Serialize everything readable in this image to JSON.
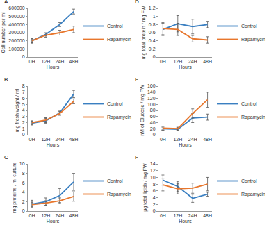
{
  "chart_data": [
    {
      "type": "line",
      "title": "A",
      "x_label": "Hours",
      "y_label": "Cell number per ml",
      "categories": [
        "0H",
        "12H",
        "24H",
        "48H"
      ],
      "series": [
        {
          "name": "Control",
          "color": "#3a7fc1",
          "values": [
            200000,
            280000,
            400000,
            560000
          ],
          "error": [
            25000,
            20000,
            25000,
            30000
          ]
        },
        {
          "name": "Rapamycin",
          "color": "#e8762c",
          "values": [
            200000,
            270000,
            300000,
            340000
          ],
          "error": [
            30000,
            25000,
            30000,
            40000
          ]
        }
      ],
      "ylim": [
        0,
        600000
      ],
      "yticks": [
        0,
        100000,
        200000,
        300000,
        400000,
        500000,
        600000
      ],
      "grid": false,
      "legend": "right"
    },
    {
      "type": "line",
      "title": "D",
      "x_label": "Hours",
      "y_label": "mg total protein / mg FW",
      "categories": [
        "0H",
        "12H",
        "24H",
        "48H"
      ],
      "series": [
        {
          "name": "Control",
          "color": "#3a7fc1",
          "values": [
            0.68,
            0.82,
            0.75,
            0.8
          ],
          "error": [
            0.15,
            0.2,
            0.18,
            0.08
          ]
        },
        {
          "name": "Rapamycin",
          "color": "#e8762c",
          "values": [
            0.7,
            0.68,
            0.45,
            0.42
          ],
          "error": [
            0.15,
            0.15,
            0.08,
            0.08
          ]
        }
      ],
      "ylim": [
        0,
        1.2
      ],
      "yticks": [
        0,
        0.2,
        0.4,
        0.6,
        0.8,
        1,
        1.2
      ],
      "grid": false,
      "legend": "right"
    },
    {
      "type": "line",
      "title": "B",
      "x_label": "Hours",
      "y_label": "mg fresh weight / ml",
      "categories": [
        "0H",
        "12H",
        "24H",
        "48H"
      ],
      "series": [
        {
          "name": "Control",
          "color": "#3a7fc1",
          "values": [
            1.9,
            2.3,
            3.6,
            6.7
          ],
          "error": [
            0.3,
            0.4,
            0.3,
            0.6
          ]
        },
        {
          "name": "Rapamycin",
          "color": "#e8762c",
          "values": [
            2.0,
            2.4,
            3.5,
            5.5
          ],
          "error": [
            0.3,
            0.4,
            0.3,
            0.4
          ]
        }
      ],
      "ylim": [
        0,
        8
      ],
      "yticks": [
        0,
        1,
        2,
        3,
        4,
        5,
        6,
        7,
        8
      ],
      "grid": false,
      "legend": "right"
    },
    {
      "type": "line",
      "title": "E",
      "x_label": "Hours",
      "y_label": "nM of Glucose / mg FW",
      "categories": [
        "0H",
        "12H",
        "24H",
        "48H"
      ],
      "series": [
        {
          "name": "Control",
          "color": "#3a7fc1",
          "values": [
            20,
            18,
            55,
            58
          ],
          "error": [
            5,
            5,
            15,
            10
          ]
        },
        {
          "name": "Rapamycin",
          "color": "#e8762c",
          "values": [
            22,
            20,
            70,
            115
          ],
          "error": [
            6,
            5,
            15,
            25
          ]
        }
      ],
      "ylim": [
        0,
        160
      ],
      "yticks": [
        0,
        20,
        40,
        60,
        80,
        100,
        120,
        140,
        160
      ],
      "grid": false,
      "legend": "right"
    },
    {
      "type": "line",
      "title": "C",
      "x_label": "Hours",
      "y_label": "mg proteins / ml culture",
      "categories": [
        "0H",
        "12H",
        "24H",
        "48H"
      ],
      "series": [
        {
          "name": "Control",
          "color": "#3a7fc1",
          "values": [
            1.5,
            2.0,
            3.3,
            6.2
          ],
          "error": [
            0.8,
            0.8,
            1.5,
            1.8
          ]
        },
        {
          "name": "Rapamycin",
          "color": "#e8762c",
          "values": [
            1.4,
            1.7,
            2.2,
            3.1
          ],
          "error": [
            0.5,
            0.5,
            0.6,
            1.0
          ]
        }
      ],
      "ylim": [
        0,
        10
      ],
      "yticks": [
        0,
        2,
        4,
        6,
        8,
        10
      ],
      "grid": false,
      "legend": "right"
    },
    {
      "type": "line",
      "title": "F",
      "x_label": "Hours",
      "y_label": "µg total lipids / mg FW",
      "categories": [
        "0H",
        "12H",
        "24H",
        "48H"
      ],
      "series": [
        {
          "name": "Control",
          "color": "#3a7fc1",
          "values": [
            9.2,
            7.3,
            3.8,
            5.0
          ],
          "error": [
            1.5,
            1.5,
            1.2,
            0.6
          ]
        },
        {
          "name": "Rapamycin",
          "color": "#e8762c",
          "values": [
            7.8,
            6.6,
            6.8,
            8.0
          ],
          "error": [
            1.8,
            1.5,
            1.5,
            2.0
          ]
        }
      ],
      "ylim": [
        0,
        14
      ],
      "yticks": [
        0,
        2,
        4,
        6,
        8,
        10,
        12,
        14
      ],
      "grid": false,
      "legend": "right"
    }
  ]
}
